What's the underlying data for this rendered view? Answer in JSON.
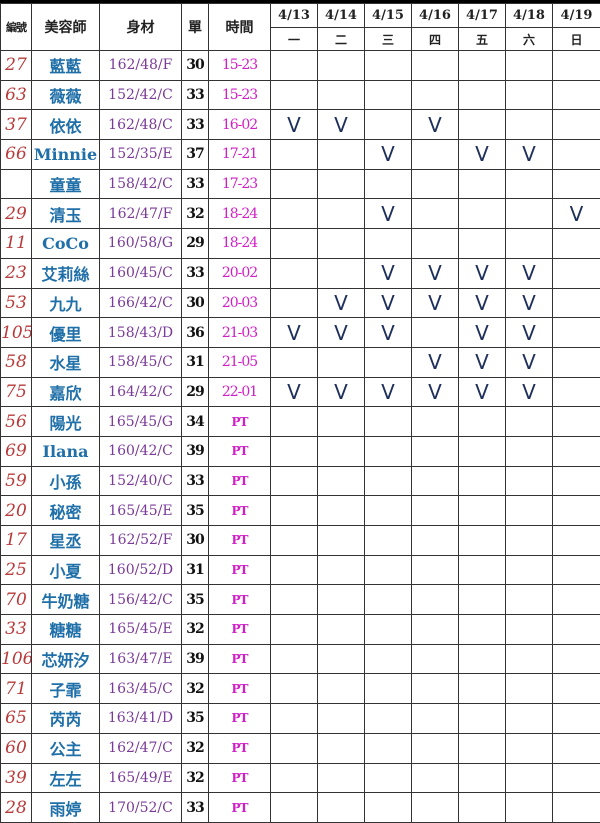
{
  "headers": {
    "id": "編號",
    "name": "美容師",
    "body": "身材",
    "orders": "單",
    "time": "時間"
  },
  "dates": [
    "4/13",
    "4/14",
    "4/15",
    "4/16",
    "4/17",
    "4/18",
    "4/19"
  ],
  "weekdays": [
    "一",
    "二",
    "三",
    "四",
    "五",
    "六",
    "日"
  ],
  "mark_symbol": "V",
  "colors": {
    "id": "#b83a3a",
    "name": "#1f6fa8",
    "body": "#7a3a98",
    "time": "#d21ec7",
    "mark": "#1d2f5a"
  },
  "rows": [
    {
      "id": "27",
      "name": "藍藍",
      "body": "162/48/F",
      "orders": "30",
      "time": "15-23",
      "days": [
        0,
        0,
        0,
        0,
        0,
        0,
        0
      ]
    },
    {
      "id": "63",
      "name": "薇薇",
      "body": "152/42/C",
      "orders": "33",
      "time": "15-23",
      "days": [
        0,
        0,
        0,
        0,
        0,
        0,
        0
      ]
    },
    {
      "id": "37",
      "name": "依依",
      "body": "162/48/C",
      "orders": "33",
      "time": "16-02",
      "days": [
        1,
        1,
        0,
        1,
        0,
        0,
        0
      ]
    },
    {
      "id": "66",
      "name": "Minnie",
      "body": "152/35/E",
      "orders": "37",
      "time": "17-21",
      "days": [
        0,
        0,
        1,
        0,
        1,
        1,
        0
      ]
    },
    {
      "id": "",
      "name": "童童",
      "body": "158/42/C",
      "orders": "33",
      "time": "17-23",
      "days": [
        0,
        0,
        0,
        0,
        0,
        0,
        0
      ]
    },
    {
      "id": "29",
      "name": "清玉",
      "body": "162/47/F",
      "orders": "32",
      "time": "18-24",
      "days": [
        0,
        0,
        1,
        0,
        0,
        0,
        1
      ]
    },
    {
      "id": "11",
      "name": "CoCo",
      "body": "160/58/G",
      "orders": "29",
      "time": "18-24",
      "days": [
        0,
        0,
        0,
        0,
        0,
        0,
        0
      ]
    },
    {
      "id": "23",
      "name": "艾莉絲",
      "body": "160/45/C",
      "orders": "33",
      "time": "20-02",
      "days": [
        0,
        0,
        1,
        1,
        1,
        1,
        0
      ]
    },
    {
      "id": "53",
      "name": "九九",
      "body": "166/42/C",
      "orders": "30",
      "time": "20-03",
      "days": [
        0,
        1,
        1,
        1,
        1,
        1,
        0
      ]
    },
    {
      "id": "105",
      "name": "優里",
      "body": "158/43/D",
      "orders": "36",
      "time": "21-03",
      "days": [
        1,
        1,
        1,
        0,
        1,
        1,
        0
      ]
    },
    {
      "id": "58",
      "name": "水星",
      "body": "158/45/C",
      "orders": "31",
      "time": "21-05",
      "days": [
        0,
        0,
        0,
        1,
        1,
        1,
        0
      ]
    },
    {
      "id": "75",
      "name": "嘉欣",
      "body": "164/42/C",
      "orders": "29",
      "time": "22-01",
      "days": [
        1,
        1,
        1,
        1,
        1,
        1,
        0
      ]
    },
    {
      "id": "56",
      "name": "陽光",
      "body": "165/45/G",
      "orders": "34",
      "time": "PT",
      "days": [
        0,
        0,
        0,
        0,
        0,
        0,
        0
      ]
    },
    {
      "id": "69",
      "name": "Ilana",
      "body": "160/42/C",
      "orders": "39",
      "time": "PT",
      "days": [
        0,
        0,
        0,
        0,
        0,
        0,
        0
      ]
    },
    {
      "id": "59",
      "name": "小孫",
      "body": "152/40/C",
      "orders": "33",
      "time": "PT",
      "days": [
        0,
        0,
        0,
        0,
        0,
        0,
        0
      ]
    },
    {
      "id": "20",
      "name": "秘密",
      "body": "165/45/E",
      "orders": "35",
      "time": "PT",
      "days": [
        0,
        0,
        0,
        0,
        0,
        0,
        0
      ]
    },
    {
      "id": "17",
      "name": "星丞",
      "body": "162/52/F",
      "orders": "30",
      "time": "PT",
      "days": [
        0,
        0,
        0,
        0,
        0,
        0,
        0
      ]
    },
    {
      "id": "25",
      "name": "小夏",
      "body": "160/52/D",
      "orders": "31",
      "time": "PT",
      "days": [
        0,
        0,
        0,
        0,
        0,
        0,
        0
      ]
    },
    {
      "id": "70",
      "name": "牛奶糖",
      "body": "156/42/C",
      "orders": "35",
      "time": "PT",
      "days": [
        0,
        0,
        0,
        0,
        0,
        0,
        0
      ]
    },
    {
      "id": "33",
      "name": "糖糖",
      "body": "165/45/E",
      "orders": "32",
      "time": "PT",
      "days": [
        0,
        0,
        0,
        0,
        0,
        0,
        0
      ]
    },
    {
      "id": "106",
      "name": "芯妍汐",
      "body": "163/47/E",
      "orders": "39",
      "time": "PT",
      "days": [
        0,
        0,
        0,
        0,
        0,
        0,
        0
      ]
    },
    {
      "id": "71",
      "name": "子霏",
      "body": "163/45/C",
      "orders": "32",
      "time": "PT",
      "days": [
        0,
        0,
        0,
        0,
        0,
        0,
        0
      ]
    },
    {
      "id": "65",
      "name": "芮芮",
      "body": "163/41/D",
      "orders": "35",
      "time": "PT",
      "days": [
        0,
        0,
        0,
        0,
        0,
        0,
        0
      ]
    },
    {
      "id": "60",
      "name": "公主",
      "body": "162/47/C",
      "orders": "32",
      "time": "PT",
      "days": [
        0,
        0,
        0,
        0,
        0,
        0,
        0
      ]
    },
    {
      "id": "39",
      "name": "左左",
      "body": "165/49/E",
      "orders": "32",
      "time": "PT",
      "days": [
        0,
        0,
        0,
        0,
        0,
        0,
        0
      ]
    },
    {
      "id": "28",
      "name": "雨婷",
      "body": "170/52/C",
      "orders": "33",
      "time": "PT",
      "days": [
        0,
        0,
        0,
        0,
        0,
        0,
        0
      ]
    }
  ]
}
